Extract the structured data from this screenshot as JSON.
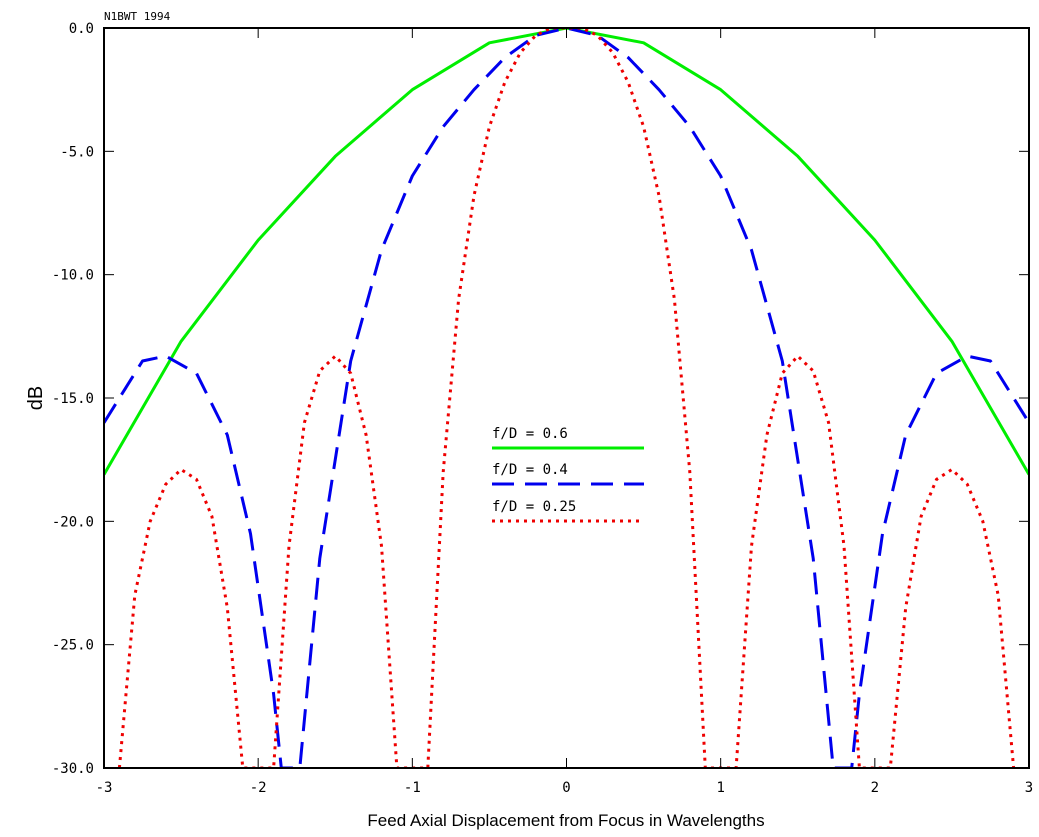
{
  "chart_data": {
    "type": "line",
    "watermark": "N1BWT 1994",
    "xlabel": "Feed Axial Displacement from Focus in Wavelengths",
    "ylabel": "dB",
    "xlim": [
      -3,
      3
    ],
    "ylim": [
      -30,
      0
    ],
    "x_ticks": [
      -3,
      -2,
      -1,
      0,
      1,
      2,
      3
    ],
    "x_tick_labels": [
      "-3",
      "-2",
      "-1",
      "0",
      "1",
      "2",
      "3"
    ],
    "y_ticks": [
      0,
      -5,
      -10,
      -15,
      -20,
      -25,
      -30
    ],
    "y_tick_labels": [
      "0.0",
      "-5.0",
      "-10.0",
      "-15.0",
      "-20.0",
      "-25.0",
      "-30.0"
    ],
    "grid": false,
    "legend_position": "center",
    "series": [
      {
        "name": "f/D = 0.6",
        "color": "#00ee00",
        "style": "solid",
        "x": [
          -3.0,
          -2.5,
          -2.0,
          -1.5,
          -1.0,
          -0.5,
          0.0,
          0.5,
          1.0,
          1.5,
          2.0,
          2.5,
          3.0
        ],
        "y": [
          -18.1,
          -12.7,
          -8.6,
          -5.2,
          -2.5,
          -0.6,
          0.0,
          -0.6,
          -2.5,
          -5.2,
          -8.6,
          -12.7,
          -18.1
        ]
      },
      {
        "name": "f/D = 0.4",
        "color": "#0000ee",
        "style": "dashed",
        "x": [
          -3.0,
          -2.75,
          -2.6,
          -2.4,
          -2.2,
          -2.05,
          -1.9,
          -1.85,
          -1.73,
          -1.6,
          -1.4,
          -1.2,
          -1.0,
          -0.8,
          -0.6,
          -0.4,
          -0.2,
          0.0,
          0.2,
          0.4,
          0.6,
          0.8,
          1.0,
          1.2,
          1.4,
          1.6,
          1.73,
          1.85,
          1.9,
          2.05,
          2.2,
          2.4,
          2.6,
          2.75,
          3.0
        ],
        "y": [
          -16.0,
          -13.5,
          -13.3,
          -14.0,
          -16.5,
          -20.5,
          -27.0,
          -30.0,
          -30.0,
          -21.5,
          -13.5,
          -9.0,
          -6.0,
          -4.0,
          -2.5,
          -1.2,
          -0.3,
          0.0,
          -0.3,
          -1.2,
          -2.5,
          -4.0,
          -6.0,
          -9.0,
          -13.5,
          -21.5,
          -30.0,
          -30.0,
          -27.0,
          -20.5,
          -16.5,
          -14.0,
          -13.3,
          -13.5,
          -16.0
        ]
      },
      {
        "name": "f/D = 0.25",
        "color": "#ee0000",
        "style": "dotted",
        "x": [
          -2.9,
          -2.8,
          -2.7,
          -2.6,
          -2.5,
          -2.4,
          -2.3,
          -2.2,
          -2.1,
          -1.9,
          -1.8,
          -1.7,
          -1.6,
          -1.5,
          -1.4,
          -1.3,
          -1.2,
          -1.1,
          -0.9,
          -0.8,
          -0.7,
          -0.6,
          -0.5,
          -0.4,
          -0.3,
          -0.2,
          -0.1,
          0.0,
          0.1,
          0.2,
          0.3,
          0.4,
          0.5,
          0.6,
          0.7,
          0.8,
          0.9,
          1.1,
          1.2,
          1.3,
          1.4,
          1.5,
          1.6,
          1.7,
          1.8,
          1.9,
          2.1,
          2.2,
          2.3,
          2.4,
          2.5,
          2.6,
          2.7,
          2.8,
          2.9
        ],
        "y": [
          -30.0,
          -23.0,
          -20.0,
          -18.5,
          -17.9,
          -18.3,
          -19.8,
          -23.5,
          -30.0,
          -30.0,
          -21.0,
          -16.0,
          -13.9,
          -13.3,
          -14.0,
          -16.5,
          -21.0,
          -30.0,
          -30.0,
          -18.0,
          -11.0,
          -6.8,
          -4.0,
          -2.2,
          -1.0,
          -0.3,
          0.0,
          0.0,
          0.0,
          -0.3,
          -1.0,
          -2.2,
          -4.0,
          -6.8,
          -11.0,
          -18.0,
          -30.0,
          -30.0,
          -21.0,
          -16.5,
          -14.0,
          -13.3,
          -13.9,
          -16.0,
          -21.0,
          -30.0,
          -30.0,
          -23.5,
          -19.8,
          -18.3,
          -17.9,
          -18.5,
          -20.0,
          -23.0,
          -30.0
        ]
      }
    ]
  }
}
